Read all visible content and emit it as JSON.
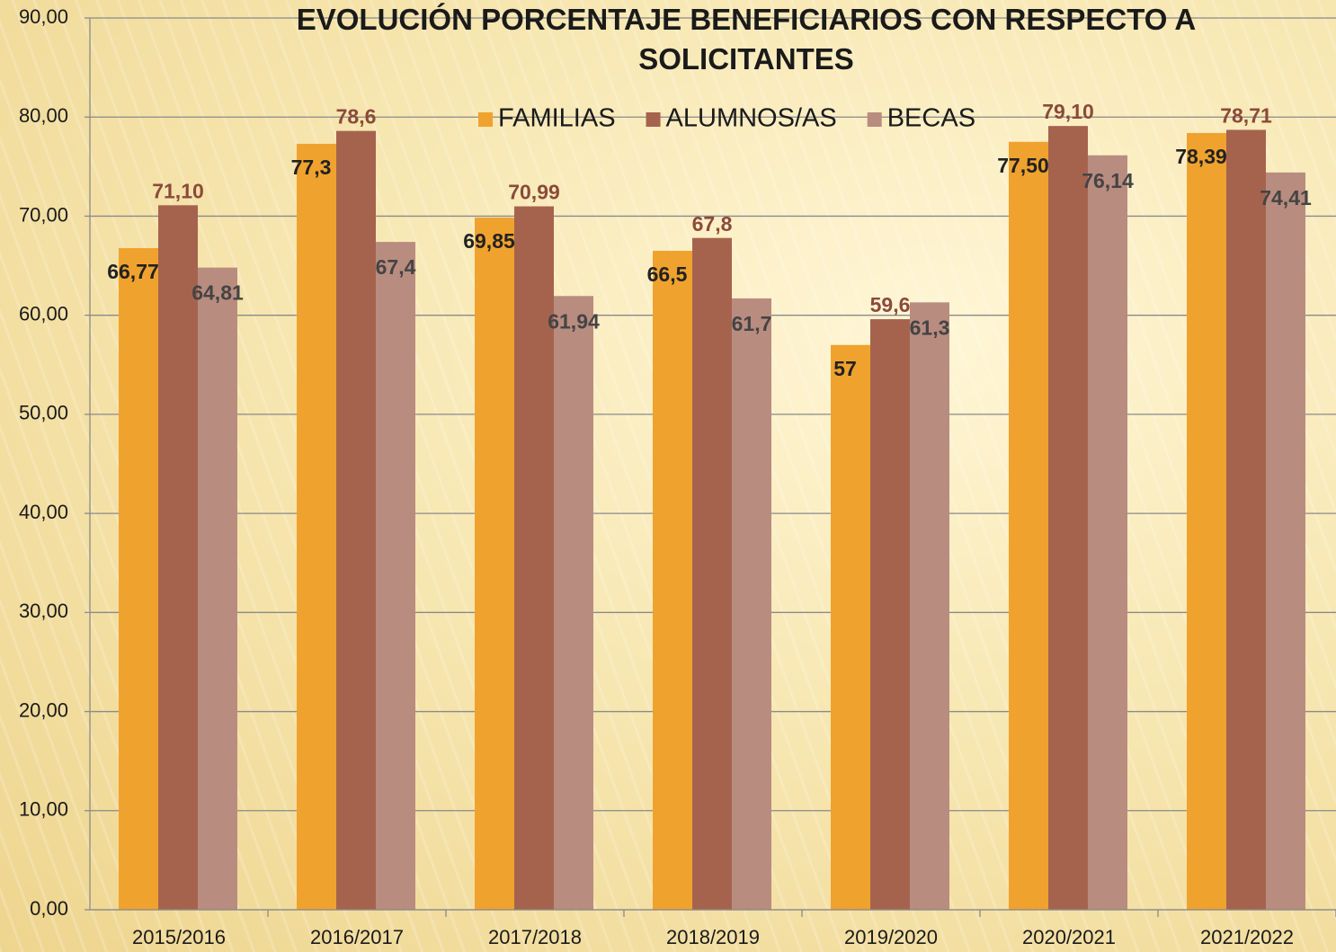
{
  "chart_data": {
    "type": "bar",
    "title": "EVOLUCIÓN PORCENTAJE BENEFICIARIOS CON RESPECTO A SOLICITANTES",
    "categories": [
      "2015/2016",
      "2016/2017",
      "2017/2018",
      "2018/2019",
      "2019/2020",
      "2020/2021",
      "2021/2022"
    ],
    "series": [
      {
        "name": "FAMILIAS",
        "color": "#f0a22e",
        "values": [
          66.77,
          77.3,
          69.85,
          66.5,
          57,
          77.5,
          78.39
        ],
        "value_labels": [
          "66,77",
          "77,3",
          "69,85",
          "66,5",
          "57",
          "77,50",
          "78,39"
        ]
      },
      {
        "name": "ALUMNOS/AS",
        "color": "#a5634e",
        "values": [
          71.1,
          78.6,
          70.99,
          67.8,
          59.6,
          79.1,
          78.71
        ],
        "value_labels": [
          "71,10",
          "78,6",
          "70,99",
          "67,8",
          "59,6",
          "79,10",
          "78,71"
        ]
      },
      {
        "name": "BECAS",
        "color": "#b98c80",
        "values": [
          64.81,
          67.4,
          61.94,
          61.7,
          61.3,
          76.14,
          74.41
        ],
        "value_labels": [
          "64,81",
          "67,4",
          "61,94",
          "61,7",
          "61,3",
          "76,14",
          "74,41"
        ]
      }
    ],
    "ylim": [
      0,
      90
    ],
    "yticks": [
      {
        "value": 0,
        "label": "0,00"
      },
      {
        "value": 10,
        "label": "10,00"
      },
      {
        "value": 20,
        "label": "20,00"
      },
      {
        "value": 30,
        "label": "30,00"
      },
      {
        "value": 40,
        "label": "40,00"
      },
      {
        "value": 50,
        "label": "50,00"
      },
      {
        "value": 60,
        "label": "60,00"
      },
      {
        "value": 70,
        "label": "70,00"
      },
      {
        "value": 80,
        "label": "80,00"
      },
      {
        "value": 90,
        "label": "90,00"
      }
    ],
    "grid": true,
    "legend": "top"
  }
}
